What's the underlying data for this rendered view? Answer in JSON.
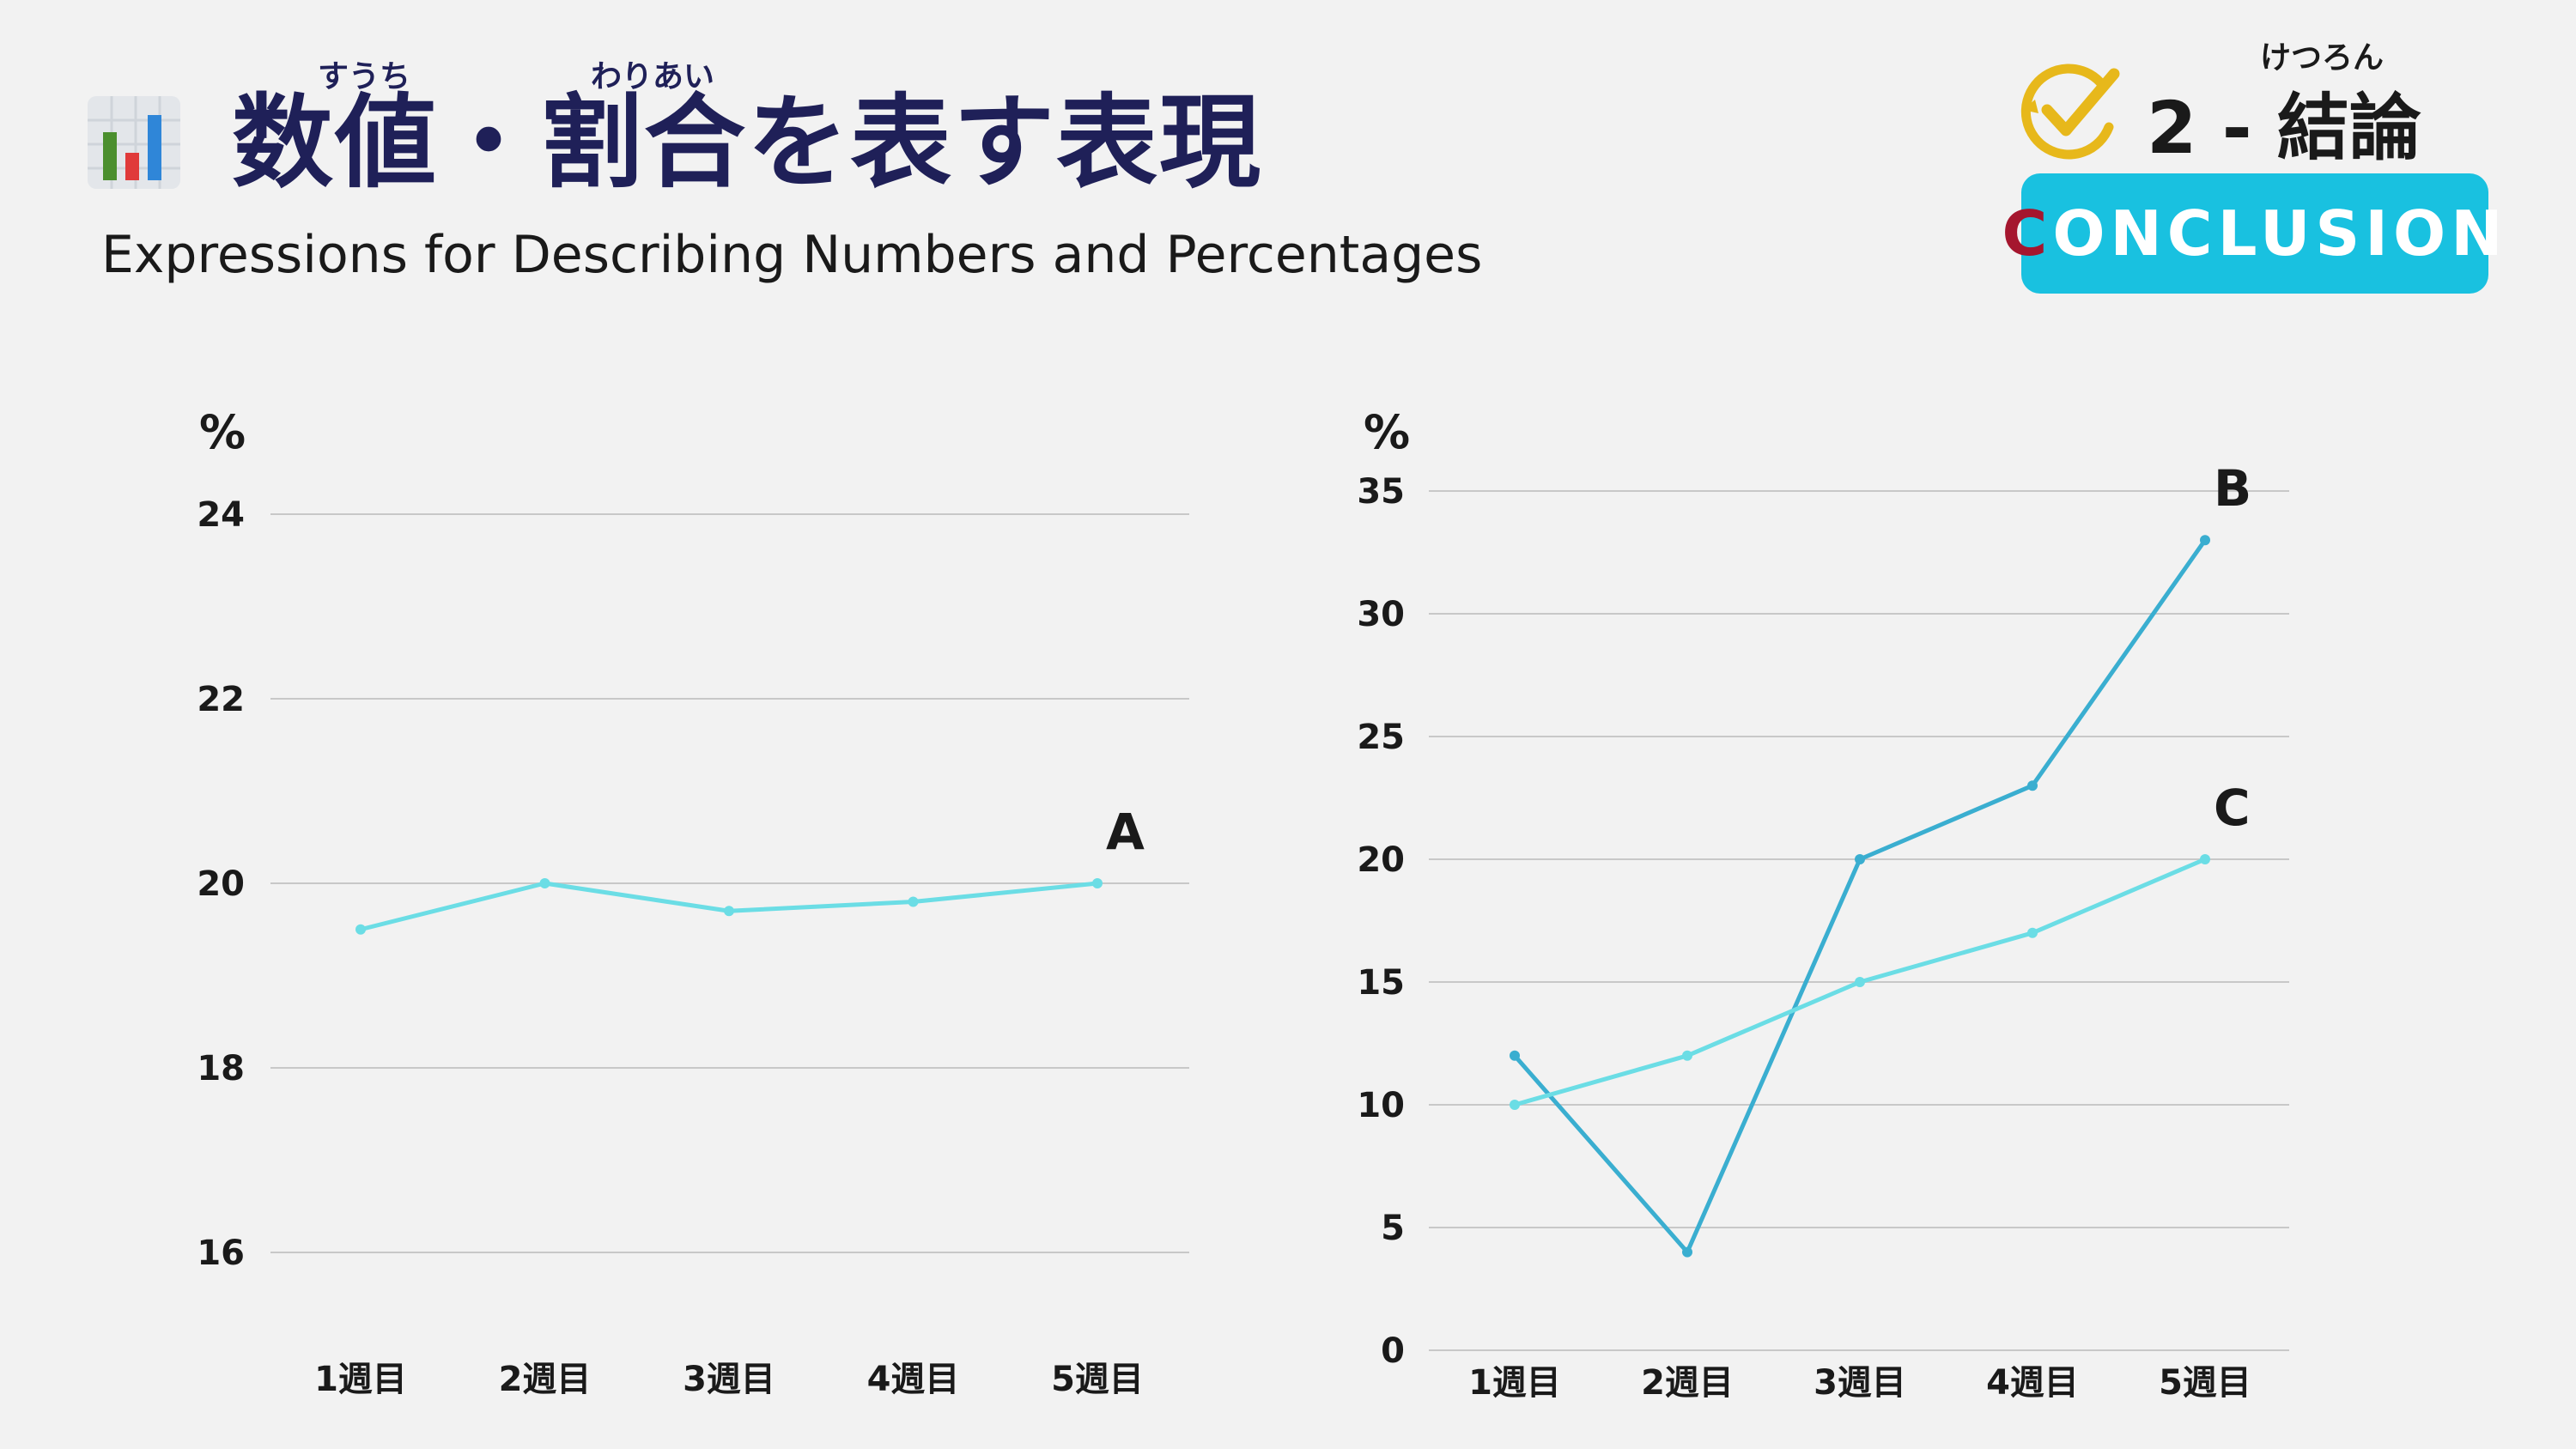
{
  "header": {
    "title": "数値・割合を表す表現",
    "ruby_suuchi": "すうち",
    "ruby_wariai": "わりあい",
    "subtitle": "Expressions for Describing Numbers and Percentages"
  },
  "badge": {
    "ruby": "けつろん",
    "section": "2 - 結論",
    "label_first": "C",
    "label_rest": "ONCLUSION"
  },
  "colors": {
    "line_light": "#6bdde5",
    "line_dark": "#3aaed0",
    "title": "#1f2058",
    "badge_bg": "#19c1e0"
  },
  "chart_data": [
    {
      "type": "line",
      "ylabel": "%",
      "categories": [
        "1週目",
        "2週目",
        "3週目",
        "4週目",
        "5週目"
      ],
      "yticks": [
        16,
        18,
        20,
        22,
        24
      ],
      "ylim": [
        15,
        25
      ],
      "grid": true,
      "series": [
        {
          "name": "A",
          "values": [
            19.5,
            20.0,
            19.7,
            19.8,
            20.0
          ],
          "color": "#6bdde5"
        }
      ]
    },
    {
      "type": "line",
      "ylabel": "%",
      "categories": [
        "1週目",
        "2週目",
        "3週目",
        "4週目",
        "5週目"
      ],
      "yticks": [
        0,
        5,
        10,
        15,
        20,
        25,
        30,
        35
      ],
      "ylim": [
        0,
        35
      ],
      "grid": true,
      "series": [
        {
          "name": "B",
          "values": [
            12,
            4,
            20,
            23,
            33
          ],
          "color": "#3aaed0"
        },
        {
          "name": "C",
          "values": [
            10,
            12,
            15,
            17,
            20
          ],
          "color": "#6bdde5"
        }
      ]
    }
  ]
}
